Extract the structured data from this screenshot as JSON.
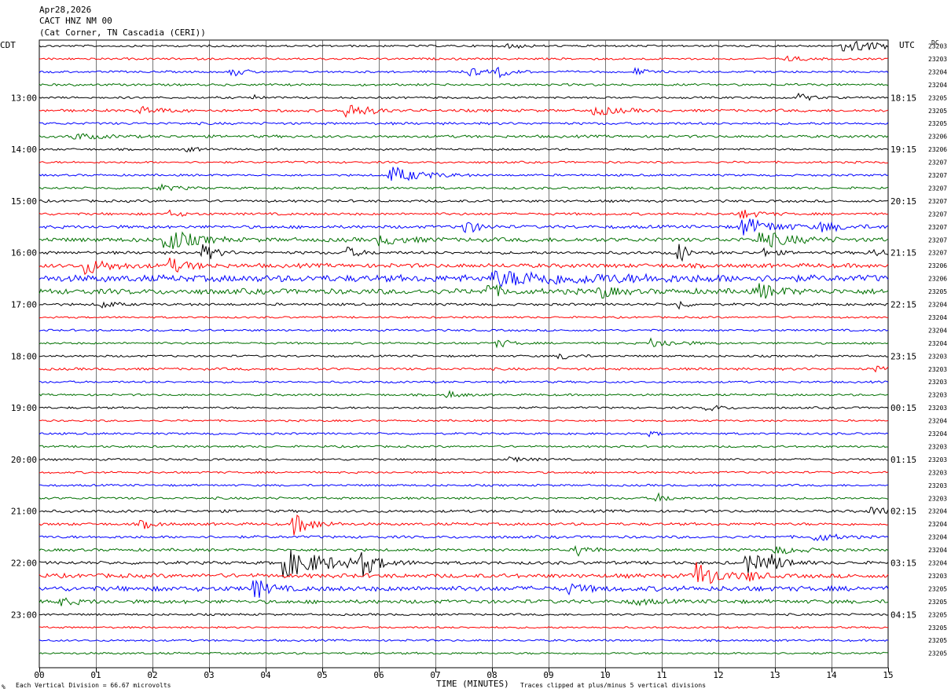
{
  "header": {
    "date": "Apr28,2026",
    "station": "CACT HNZ NM 00",
    "location": "(Cat Corner, TN Cascadia (CERI))"
  },
  "labels": {
    "left_zone": "CDT",
    "right_zone": "UTC",
    "dc": "DC",
    "xlabel": "TIME (MINUTES)",
    "scale_note": "Each Vertical Division =   66.67 microvolts",
    "clip_note": "Traces clipped at plus/minus 5 vertical divisions",
    "corner_mark": "%"
  },
  "colors": {
    "cycle": [
      "#000000",
      "#ff0000",
      "#0000ff",
      "#007000"
    ],
    "grid": "#000000"
  },
  "chart_data": {
    "type": "line",
    "title": "Apr28,2026",
    "xlabel": "TIME (MINUTES)",
    "ylabel": "",
    "xlim": [
      0,
      15
    ],
    "x_ticks": [
      "00",
      "01",
      "02",
      "03",
      "04",
      "05",
      "06",
      "07",
      "08",
      "09",
      "10",
      "11",
      "12",
      "13",
      "14",
      "15"
    ],
    "left_hour_labels": [
      {
        "row": 4,
        "text": "13:00"
      },
      {
        "row": 8,
        "text": "14:00"
      },
      {
        "row": 12,
        "text": "15:00"
      },
      {
        "row": 16,
        "text": "16:00"
      },
      {
        "row": 20,
        "text": "17:00"
      },
      {
        "row": 24,
        "text": "18:00"
      },
      {
        "row": 28,
        "text": "19:00"
      },
      {
        "row": 32,
        "text": "20:00"
      },
      {
        "row": 36,
        "text": "21:00"
      },
      {
        "row": 40,
        "text": "22:00"
      },
      {
        "row": 44,
        "text": "23:00"
      }
    ],
    "right_hour_labels": [
      {
        "row": 4,
        "text": "18:15"
      },
      {
        "row": 8,
        "text": "19:15"
      },
      {
        "row": 12,
        "text": "20:15"
      },
      {
        "row": 16,
        "text": "21:15"
      },
      {
        "row": 20,
        "text": "22:15"
      },
      {
        "row": 24,
        "text": "23:15"
      },
      {
        "row": 28,
        "text": "00:15"
      },
      {
        "row": 32,
        "text": "01:15"
      },
      {
        "row": 36,
        "text": "02:15"
      },
      {
        "row": 40,
        "text": "03:15"
      },
      {
        "row": 44,
        "text": "04:15"
      }
    ],
    "dc_offsets": [
      "23203",
      "23203",
      "23204",
      "23204",
      "23205",
      "23205",
      "23205",
      "23206",
      "23206",
      "23207",
      "23207",
      "23207",
      "23207",
      "23207",
      "23207",
      "23207",
      "23207",
      "23206",
      "23206",
      "23205",
      "23204",
      "23204",
      "23204",
      "23204",
      "23203",
      "23203",
      "23203",
      "23203",
      "23203",
      "23204",
      "23204",
      "23203",
      "23203",
      "23203",
      "23203",
      "23203",
      "23204",
      "23204",
      "23204",
      "23204",
      "23204",
      "23203",
      "23205",
      "23205",
      "23205",
      "23205",
      "23205",
      "23205"
    ],
    "row_noise": [
      1.0,
      1.0,
      1.0,
      1.1,
      1.0,
      1.3,
      1.2,
      1.3,
      1.0,
      1.0,
      1.0,
      1.1,
      1.2,
      1.2,
      1.5,
      2.0,
      1.4,
      2.0,
      3.2,
      2.6,
      1.2,
      0.9,
      1.0,
      1.0,
      1.0,
      1.2,
      1.0,
      1.0,
      1.0,
      0.9,
      1.0,
      1.0,
      1.0,
      1.0,
      1.0,
      1.1,
      1.3,
      1.3,
      1.3,
      1.3,
      1.5,
      2.0,
      2.4,
      1.8,
      1.0,
      0.9,
      1.0,
      1.0
    ],
    "events": [
      {
        "row": 0,
        "minute": 14.2,
        "amp": 9,
        "dur": 0.6
      },
      {
        "row": 0,
        "minute": 8.3,
        "amp": 4,
        "dur": 0.2
      },
      {
        "row": 1,
        "minute": 13.2,
        "amp": 3,
        "dur": 0.3
      },
      {
        "row": 2,
        "minute": 3.4,
        "amp": 6,
        "dur": 0.2
      },
      {
        "row": 2,
        "minute": 7.6,
        "amp": 6,
        "dur": 0.2
      },
      {
        "row": 2,
        "minute": 8.1,
        "amp": 7,
        "dur": 0.2
      },
      {
        "row": 2,
        "minute": 10.5,
        "amp": 5,
        "dur": 0.2
      },
      {
        "row": 4,
        "minute": 13.4,
        "amp": 6,
        "dur": 0.2
      },
      {
        "row": 4,
        "minute": 3.8,
        "amp": 4,
        "dur": 0.1
      },
      {
        "row": 5,
        "minute": 5.4,
        "amp": 13,
        "dur": 0.3
      },
      {
        "row": 5,
        "minute": 9.8,
        "amp": 6,
        "dur": 0.4
      },
      {
        "row": 5,
        "minute": 1.8,
        "amp": 5,
        "dur": 0.3
      },
      {
        "row": 7,
        "minute": 0.6,
        "amp": 4,
        "dur": 0.4
      },
      {
        "row": 8,
        "minute": 2.6,
        "amp": 3,
        "dur": 0.2
      },
      {
        "row": 10,
        "minute": 6.2,
        "amp": 11,
        "dur": 0.5
      },
      {
        "row": 11,
        "minute": 2.1,
        "amp": 4,
        "dur": 0.3
      },
      {
        "row": 13,
        "minute": 2.3,
        "amp": 4,
        "dur": 0.2
      },
      {
        "row": 13,
        "minute": 12.4,
        "amp": 6,
        "dur": 0.3
      },
      {
        "row": 14,
        "minute": 7.5,
        "amp": 11,
        "dur": 0.2
      },
      {
        "row": 14,
        "minute": 12.4,
        "amp": 12,
        "dur": 0.5
      },
      {
        "row": 14,
        "minute": 13.8,
        "amp": 6,
        "dur": 0.4
      },
      {
        "row": 15,
        "minute": 2.2,
        "amp": 17,
        "dur": 0.4
      },
      {
        "row": 15,
        "minute": 12.7,
        "amp": 11,
        "dur": 0.5
      },
      {
        "row": 15,
        "minute": 6.0,
        "amp": 6,
        "dur": 0.4
      },
      {
        "row": 16,
        "minute": 2.9,
        "amp": 12,
        "dur": 0.2
      },
      {
        "row": 16,
        "minute": 5.4,
        "amp": 8,
        "dur": 0.2
      },
      {
        "row": 16,
        "minute": 11.3,
        "amp": 18,
        "dur": 0.1
      },
      {
        "row": 16,
        "minute": 14.7,
        "amp": 6,
        "dur": 0.2
      },
      {
        "row": 16,
        "minute": 12.8,
        "amp": 5,
        "dur": 0.2
      },
      {
        "row": 17,
        "minute": 0.8,
        "amp": 10,
        "dur": 0.4
      },
      {
        "row": 17,
        "minute": 2.3,
        "amp": 9,
        "dur": 0.3
      },
      {
        "row": 18,
        "minute": 8.0,
        "amp": 8,
        "dur": 1.8
      },
      {
        "row": 19,
        "minute": 7.9,
        "amp": 10,
        "dur": 0.2
      },
      {
        "row": 19,
        "minute": 9.9,
        "amp": 9,
        "dur": 0.2
      },
      {
        "row": 19,
        "minute": 12.7,
        "amp": 10,
        "dur": 0.3
      },
      {
        "row": 20,
        "minute": 1.1,
        "amp": 5,
        "dur": 0.2
      },
      {
        "row": 20,
        "minute": 11.3,
        "amp": 8,
        "dur": 0.1
      },
      {
        "row": 23,
        "minute": 8.1,
        "amp": 6,
        "dur": 0.2
      },
      {
        "row": 23,
        "minute": 10.8,
        "amp": 6,
        "dur": 0.4
      },
      {
        "row": 24,
        "minute": 9.2,
        "amp": 5,
        "dur": 0.2
      },
      {
        "row": 25,
        "minute": 14.8,
        "amp": 4,
        "dur": 0.3
      },
      {
        "row": 27,
        "minute": 7.2,
        "amp": 5,
        "dur": 0.2
      },
      {
        "row": 28,
        "minute": 11.8,
        "amp": 5,
        "dur": 0.2
      },
      {
        "row": 30,
        "minute": 10.8,
        "amp": 5,
        "dur": 0.1
      },
      {
        "row": 32,
        "minute": 8.3,
        "amp": 3,
        "dur": 0.3
      },
      {
        "row": 35,
        "minute": 10.9,
        "amp": 6,
        "dur": 0.2
      },
      {
        "row": 36,
        "minute": 14.7,
        "amp": 6,
        "dur": 0.3
      },
      {
        "row": 37,
        "minute": 4.5,
        "amp": 14,
        "dur": 0.3
      },
      {
        "row": 37,
        "minute": 1.8,
        "amp": 6,
        "dur": 0.2
      },
      {
        "row": 38,
        "minute": 13.7,
        "amp": 6,
        "dur": 0.3
      },
      {
        "row": 39,
        "minute": 9.5,
        "amp": 8,
        "dur": 0.2
      },
      {
        "row": 39,
        "minute": 13.0,
        "amp": 5,
        "dur": 0.4
      },
      {
        "row": 40,
        "minute": 4.3,
        "amp": 18,
        "dur": 0.8
      },
      {
        "row": 40,
        "minute": 5.7,
        "amp": 16,
        "dur": 0.2
      },
      {
        "row": 40,
        "minute": 12.5,
        "amp": 14,
        "dur": 0.3
      },
      {
        "row": 40,
        "minute": 12.9,
        "amp": 8,
        "dur": 0.3
      },
      {
        "row": 41,
        "minute": 11.6,
        "amp": 20,
        "dur": 0.3
      },
      {
        "row": 41,
        "minute": 12.5,
        "amp": 8,
        "dur": 0.2
      },
      {
        "row": 42,
        "minute": 3.8,
        "amp": 14,
        "dur": 0.2
      },
      {
        "row": 42,
        "minute": 9.3,
        "amp": 6,
        "dur": 0.3
      },
      {
        "row": 43,
        "minute": 0.3,
        "amp": 5,
        "dur": 0.3
      },
      {
        "row": 43,
        "minute": 10.5,
        "amp": 4,
        "dur": 0.3
      }
    ]
  }
}
